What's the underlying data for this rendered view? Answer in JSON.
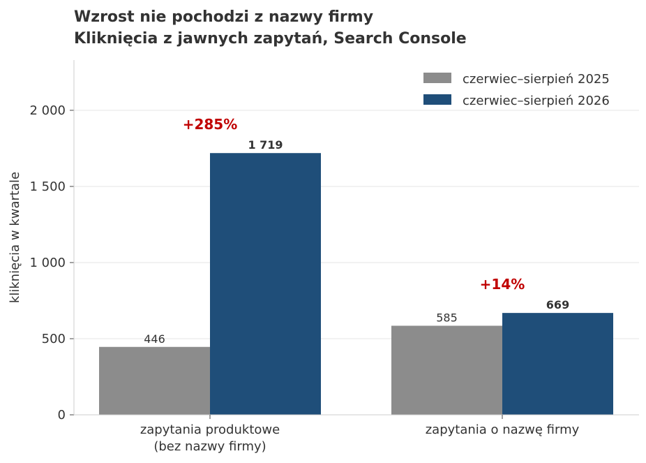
{
  "title": "Wzrost nie pochodzi z nazwy firmy",
  "subtitle": "Kliknięcia z jawnych zapytań, Search Console",
  "colors": {
    "series_2025": "#8c8c8c",
    "series_2026": "#1f4e79",
    "growth": "#c00000",
    "grid": "#e6e6e6",
    "axis": "#cccccc"
  },
  "chart_data": {
    "type": "bar",
    "title": "Wzrost nie pochodzi z nazwy firmy",
    "subtitle": "Kliknięcia z jawnych zapytań, Search Console",
    "xlabel": "",
    "ylabel": "kliknięcia w kwartale",
    "ylim": [
      0,
      2330
    ],
    "yticks": [
      0,
      500,
      1000,
      1500,
      2000
    ],
    "ytick_labels": [
      "0",
      "500",
      "1 000",
      "1 500",
      "2 000"
    ],
    "grid": true,
    "legend": "top-right",
    "categories": [
      [
        "zapytania produktowe",
        "(bez nazwy firmy)"
      ],
      [
        "zapytania o nazwę firmy"
      ]
    ],
    "series": [
      {
        "name": "czerwiec–sierpień 2025",
        "values": [
          446,
          585
        ],
        "labels": [
          "446",
          "585"
        ]
      },
      {
        "name": "czerwiec–sierpień 2026",
        "values": [
          1719,
          669
        ],
        "labels": [
          "1 719",
          "669"
        ]
      }
    ],
    "annotations": [
      "+285%",
      "+14%"
    ]
  }
}
